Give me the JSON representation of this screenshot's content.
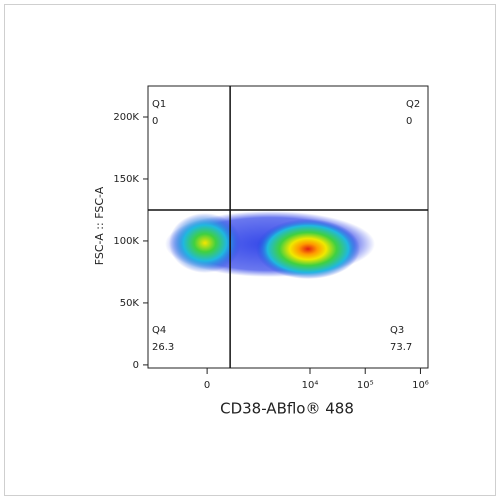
{
  "chart_data": {
    "type": "scatter",
    "xlabel": "CD38-ABflo® 488",
    "ylabel": "FSC-A :: FSC-A",
    "xscale": "biexponential",
    "xlim": [
      -1600,
      1370000
    ],
    "xticks": [
      0,
      {
        "value": 10000,
        "label": "10⁴"
      },
      {
        "value": 100000,
        "label": "10⁵"
      },
      {
        "value": 1000000,
        "label": "10⁶"
      }
    ],
    "ylim": [
      -2500,
      225000
    ],
    "yticks": [
      0,
      {
        "value": 50000,
        "label": "50K"
      },
      {
        "value": 100000,
        "label": "100K"
      },
      {
        "value": 150000,
        "label": "150K"
      },
      {
        "value": 200000,
        "label": "200K"
      }
    ],
    "gate": {
      "x": 305,
      "y": 125000
    },
    "quadrants": [
      {
        "name": "Q1",
        "percent": 0
      },
      {
        "name": "Q2",
        "percent": 0
      },
      {
        "name": "Q3",
        "percent": 73.7
      },
      {
        "name": "Q4",
        "percent": 26.3
      }
    ]
  }
}
